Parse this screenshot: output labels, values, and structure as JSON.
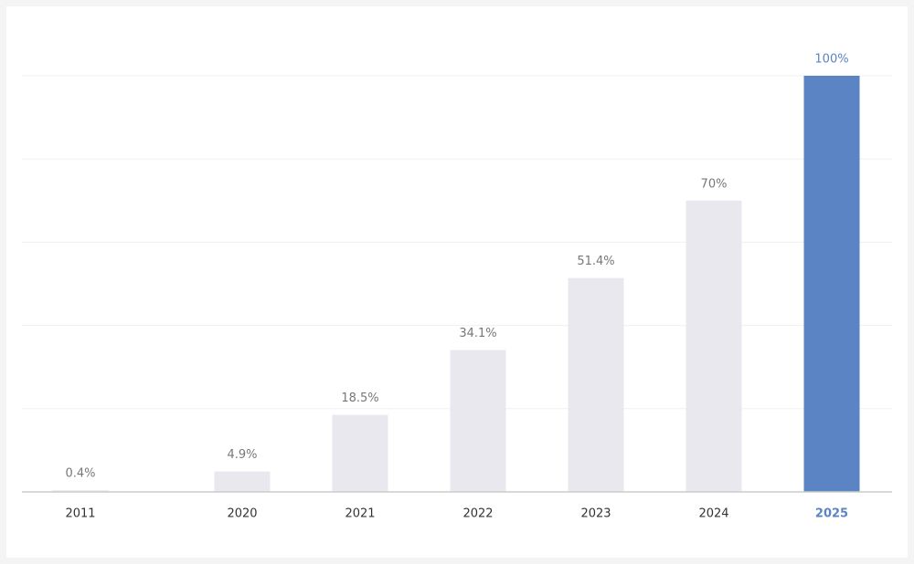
{
  "chart_data": {
    "type": "bar",
    "categories": [
      "2011",
      "2020",
      "2021",
      "2022",
      "2023",
      "2024",
      "2025"
    ],
    "values": [
      0.4,
      4.9,
      18.5,
      34.1,
      51.4,
      70,
      100
    ],
    "value_labels": [
      "0.4%",
      "4.9%",
      "18.5%",
      "34.1%",
      "51.4%",
      "70%",
      "100%"
    ],
    "bar_color": "#e8e8ee",
    "highlight_color": "#5b84c4",
    "highlight": 6,
    "ylim": [
      0,
      100
    ],
    "yticks": [
      0,
      20,
      40,
      60,
      80,
      100
    ],
    "grid": true
  }
}
